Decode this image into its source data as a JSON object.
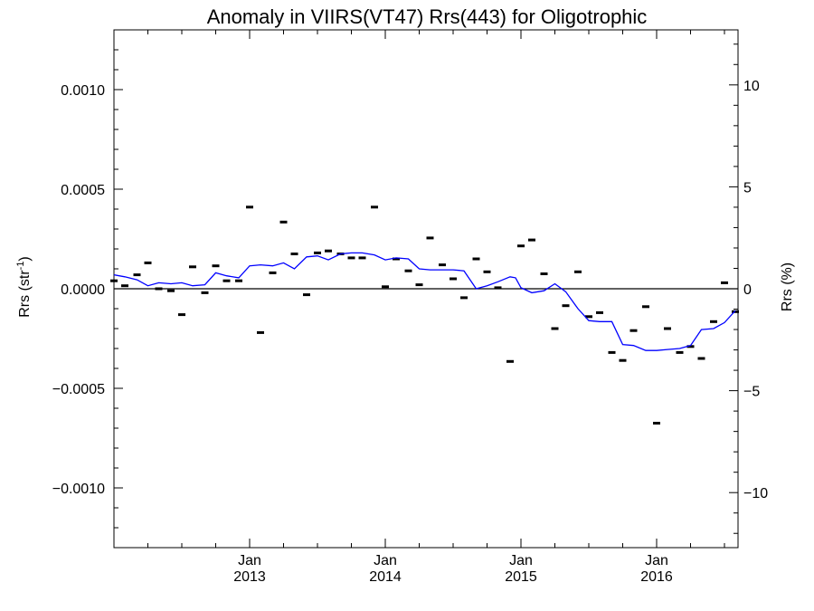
{
  "chart_data": {
    "type": "scatter",
    "title": "Anomaly in VIIRS(VT47) Rrs(443) for Oligotrophic",
    "ylabel_main": "Rrs (str",
    "ylabel_sup": "-1",
    "ylabel_close": ")",
    "y2label": "Rrs (%)",
    "xlabel": "",
    "ylim": [
      -0.0013,
      0.0013
    ],
    "y2lim": [
      -12.7,
      12.7
    ],
    "xlim": [
      2012.0,
      2016.6
    ],
    "grid": false,
    "y_ticks": [
      {
        "v": 0.001,
        "label": "0.0010"
      },
      {
        "v": 0.0005,
        "label": "0.0005"
      },
      {
        "v": 0.0,
        "label": "0.0000"
      },
      {
        "v": -0.0005,
        "label": "−0.0005"
      },
      {
        "v": -0.001,
        "label": "−0.0010"
      }
    ],
    "y2_ticks": [
      {
        "v": 10,
        "label": "10"
      },
      {
        "v": 5,
        "label": "5"
      },
      {
        "v": 0,
        "label": "0"
      },
      {
        "v": -5,
        "label": "−5"
      },
      {
        "v": -10,
        "label": "−10"
      }
    ],
    "x_ticks": [
      {
        "x": 2013.0,
        "label1": "Jan",
        "label2": "2013"
      },
      {
        "x": 2014.0,
        "label1": "Jan",
        "label2": "2014"
      },
      {
        "x": 2015.0,
        "label1": "Jan",
        "label2": "2015"
      },
      {
        "x": 2016.0,
        "label1": "Jan",
        "label2": "2016"
      }
    ],
    "series": [
      {
        "kind": "points",
        "color": "#000000",
        "points": [
          [
            2012.0,
            4e-05
          ],
          [
            2012.08,
            1.5e-05
          ],
          [
            2012.17,
            7e-05
          ],
          [
            2012.25,
            0.00013
          ],
          [
            2012.33,
            0.0
          ],
          [
            2012.42,
            -1e-05
          ],
          [
            2012.5,
            -0.00013
          ],
          [
            2012.58,
            0.00011
          ],
          [
            2012.67,
            -2e-05
          ],
          [
            2012.75,
            0.000115
          ],
          [
            2012.83,
            4e-05
          ],
          [
            2012.92,
            4e-05
          ],
          [
            2013.0,
            0.00041
          ],
          [
            2013.08,
            -0.00022
          ],
          [
            2013.17,
            8e-05
          ],
          [
            2013.25,
            0.000335
          ],
          [
            2013.33,
            0.000175
          ],
          [
            2013.42,
            -3e-05
          ],
          [
            2013.5,
            0.00018
          ],
          [
            2013.58,
            0.00019
          ],
          [
            2013.67,
            0.000175
          ],
          [
            2013.75,
            0.000155
          ],
          [
            2013.83,
            0.000155
          ],
          [
            2013.92,
            0.00041
          ],
          [
            2014.0,
            1e-05
          ],
          [
            2014.08,
            0.00015
          ],
          [
            2014.17,
            9e-05
          ],
          [
            2014.25,
            2e-05
          ],
          [
            2014.33,
            0.000255
          ],
          [
            2014.42,
            0.00012
          ],
          [
            2014.5,
            5e-05
          ],
          [
            2014.58,
            -4.5e-05
          ],
          [
            2014.67,
            0.00015
          ],
          [
            2014.75,
            8.5e-05
          ],
          [
            2014.83,
            5e-06
          ],
          [
            2014.92,
            -0.000365
          ],
          [
            2015.0,
            0.000215
          ],
          [
            2015.08,
            0.000245
          ],
          [
            2015.17,
            7.5e-05
          ],
          [
            2015.25,
            -0.0002
          ],
          [
            2015.33,
            -8.5e-05
          ],
          [
            2015.42,
            8.5e-05
          ],
          [
            2015.5,
            -0.00014
          ],
          [
            2015.58,
            -0.00012
          ],
          [
            2015.67,
            -0.00032
          ],
          [
            2015.75,
            -0.00036
          ],
          [
            2015.83,
            -0.00021
          ],
          [
            2015.92,
            -9e-05
          ],
          [
            2016.0,
            -0.000675
          ],
          [
            2016.08,
            -0.0002
          ],
          [
            2016.17,
            -0.00032
          ],
          [
            2016.25,
            -0.00029
          ],
          [
            2016.33,
            -0.00035
          ],
          [
            2016.42,
            -0.000165
          ],
          [
            2016.5,
            3e-05
          ],
          [
            2016.58,
            -0.000115
          ]
        ]
      },
      {
        "kind": "line",
        "color": "#0000ff",
        "points": [
          [
            2012.0,
            7e-05
          ],
          [
            2012.08,
            6e-05
          ],
          [
            2012.17,
            4.5e-05
          ],
          [
            2012.25,
            1.5e-05
          ],
          [
            2012.33,
            3e-05
          ],
          [
            2012.42,
            2.5e-05
          ],
          [
            2012.5,
            3e-05
          ],
          [
            2012.58,
            1.5e-05
          ],
          [
            2012.67,
            2e-05
          ],
          [
            2012.75,
            8e-05
          ],
          [
            2012.83,
            6.5e-05
          ],
          [
            2012.92,
            5.5e-05
          ],
          [
            2013.0,
            0.000115
          ],
          [
            2013.08,
            0.00012
          ],
          [
            2013.17,
            0.000115
          ],
          [
            2013.25,
            0.00013
          ],
          [
            2013.33,
            0.0001
          ],
          [
            2013.42,
            0.00016
          ],
          [
            2013.5,
            0.000165
          ],
          [
            2013.58,
            0.000145
          ],
          [
            2013.67,
            0.000175
          ],
          [
            2013.75,
            0.00018
          ],
          [
            2013.83,
            0.00018
          ],
          [
            2013.92,
            0.00017
          ],
          [
            2014.0,
            0.000145
          ],
          [
            2014.08,
            0.000155
          ],
          [
            2014.17,
            0.00015
          ],
          [
            2014.25,
            0.0001
          ],
          [
            2014.33,
            9.5e-05
          ],
          [
            2014.42,
            9.5e-05
          ],
          [
            2014.5,
            9.5e-05
          ],
          [
            2014.58,
            9e-05
          ],
          [
            2014.67,
            0.0
          ],
          [
            2014.75,
            1.5e-05
          ],
          [
            2014.83,
            3.5e-05
          ],
          [
            2014.92,
            6e-05
          ],
          [
            2014.96,
            5.5e-05
          ],
          [
            2015.0,
            5e-06
          ],
          [
            2015.08,
            -2e-05
          ],
          [
            2015.17,
            -1e-05
          ],
          [
            2015.25,
            2.5e-05
          ],
          [
            2015.33,
            -1.5e-05
          ],
          [
            2015.42,
            -0.0001
          ],
          [
            2015.5,
            -0.00016
          ],
          [
            2015.58,
            -0.000165
          ],
          [
            2015.67,
            -0.000165
          ],
          [
            2015.75,
            -0.00028
          ],
          [
            2015.83,
            -0.000285
          ],
          [
            2015.92,
            -0.00031
          ],
          [
            2016.0,
            -0.00031
          ],
          [
            2016.08,
            -0.000305
          ],
          [
            2016.17,
            -0.0003
          ],
          [
            2016.25,
            -0.000285
          ],
          [
            2016.33,
            -0.000205
          ],
          [
            2016.42,
            -0.0002
          ],
          [
            2016.5,
            -0.00017
          ],
          [
            2016.58,
            -0.00011
          ]
        ]
      }
    ]
  }
}
